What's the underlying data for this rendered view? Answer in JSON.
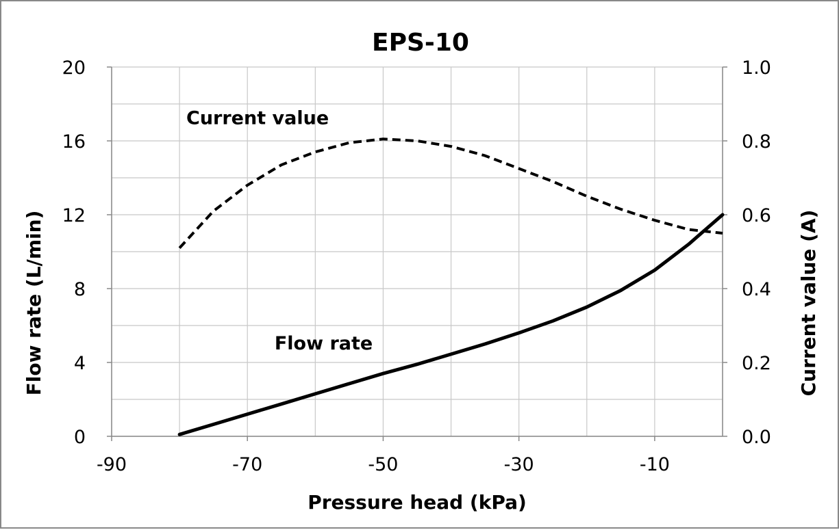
{
  "chart_data": {
    "type": "line",
    "title": "EPS-10",
    "xlabel": "Pressure head (kPa)",
    "ylabel_left": "Flow rate (L/min)",
    "ylabel_right": "Current value (A)",
    "xlim": [
      -90,
      0
    ],
    "ylim_left": [
      0,
      20
    ],
    "ylim_right": [
      0.0,
      1.0
    ],
    "x_ticks": [
      "-90",
      "-70",
      "-50",
      "-30",
      "-10"
    ],
    "y_left_ticks": [
      "0",
      "4",
      "8",
      "12",
      "16",
      "20"
    ],
    "y_right_ticks": [
      "0.0",
      "0.2",
      "0.4",
      "0.6",
      "0.8",
      "1.0"
    ],
    "grid": true,
    "legend": "none",
    "series": [
      {
        "name": "Flow rate",
        "axis": "left",
        "line_style": "solid",
        "color": "#000000",
        "x": [
          -80,
          -75,
          -70,
          -65,
          -60,
          -55,
          -50,
          -45,
          -40,
          -35,
          -30,
          -25,
          -20,
          -15,
          -10,
          -5,
          0
        ],
        "y": [
          0.1,
          0.65,
          1.2,
          1.75,
          2.3,
          2.85,
          3.4,
          3.9,
          4.45,
          5.0,
          5.6,
          6.25,
          7.0,
          7.9,
          9.0,
          10.4,
          12.0
        ]
      },
      {
        "name": "Current value",
        "axis": "right",
        "line_style": "dashed",
        "color": "#000000",
        "x": [
          -80,
          -75,
          -70,
          -65,
          -60,
          -55,
          -50,
          -45,
          -40,
          -35,
          -30,
          -25,
          -20,
          -15,
          -10,
          -5,
          0
        ],
        "y": [
          0.51,
          0.61,
          0.68,
          0.735,
          0.77,
          0.795,
          0.805,
          0.8,
          0.785,
          0.76,
          0.725,
          0.69,
          0.65,
          0.615,
          0.585,
          0.56,
          0.55
        ]
      }
    ],
    "annotations": [
      {
        "text": "Current value",
        "x": -79,
        "y": 16.9
      },
      {
        "text": "Flow rate",
        "x": -66,
        "y": 4.7
      }
    ]
  }
}
